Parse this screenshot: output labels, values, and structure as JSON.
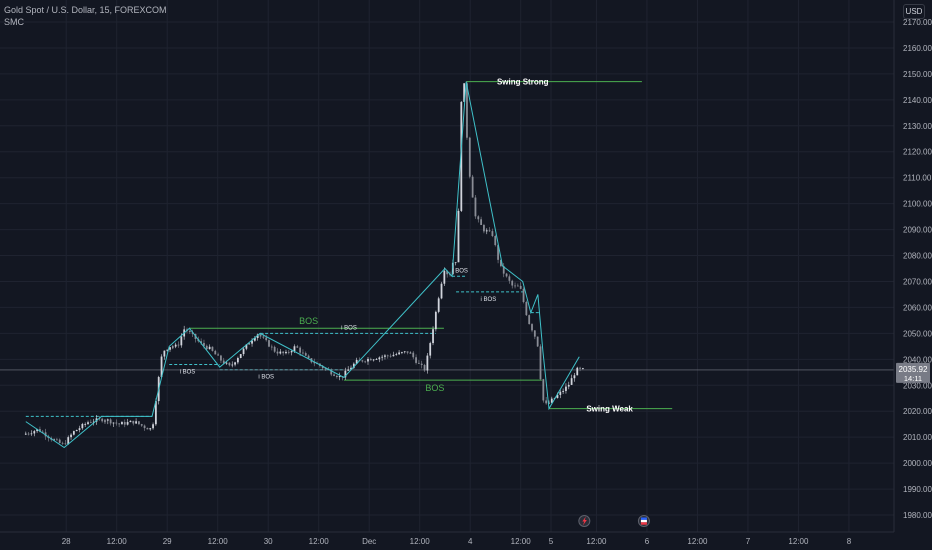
{
  "header": {
    "symbol_line": "Gold Spot / U.S. Dollar, 15, FOREXCOM",
    "indicator": "SMC",
    "currency": "USD"
  },
  "price_badge": {
    "price": "2035.92",
    "countdown": "14:11",
    "color": "#787b86"
  },
  "colors": {
    "background": "#131722",
    "grid": "#1f2330",
    "candle": "#c7c9d1",
    "zigzag": "#3fc1c9",
    "bos": "#4caf50",
    "ibos": "#3fc1c9",
    "text": "#b2b5be"
  },
  "chart_data": {
    "type": "candlestick",
    "ylim": [
      1975,
      2170
    ],
    "y_ticks": [
      1980,
      1990,
      2000,
      2010,
      2020,
      2030,
      2040,
      2050,
      2060,
      2070,
      2080,
      2090,
      2100,
      2110,
      2120,
      2130,
      2140,
      2150,
      2160,
      2170
    ],
    "x_ticks": [
      {
        "label": "28",
        "t": 0.2
      },
      {
        "label": "12:00",
        "t": 0.7
      },
      {
        "label": "29",
        "t": 1.2
      },
      {
        "label": "12:00",
        "t": 1.7
      },
      {
        "label": "30",
        "t": 2.2
      },
      {
        "label": "12:00",
        "t": 2.7
      },
      {
        "label": "Dec",
        "t": 3.2
      },
      {
        "label": "12:00",
        "t": 3.7
      },
      {
        "label": "4",
        "t": 4.2
      },
      {
        "label": "12:00",
        "t": 4.7
      },
      {
        "label": "5",
        "t": 5.0
      },
      {
        "label": "12:00",
        "t": 5.45
      },
      {
        "label": "6",
        "t": 5.95
      },
      {
        "label": "12:00",
        "t": 6.45
      },
      {
        "label": "7",
        "t": 6.95
      },
      {
        "label": "12:00",
        "t": 7.45
      },
      {
        "label": "8",
        "t": 7.95
      }
    ],
    "price_path": [
      [
        -0.2,
        2011
      ],
      [
        -0.05,
        2013
      ],
      [
        0.1,
        2009
      ],
      [
        0.2,
        2007
      ],
      [
        0.3,
        2012
      ],
      [
        0.45,
        2016
      ],
      [
        0.6,
        2017
      ],
      [
        0.75,
        2015
      ],
      [
        0.9,
        2016
      ],
      [
        1.0,
        2014
      ],
      [
        1.08,
        2013
      ],
      [
        1.12,
        2026
      ],
      [
        1.18,
        2043
      ],
      [
        1.25,
        2045
      ],
      [
        1.33,
        2045
      ],
      [
        1.4,
        2052
      ],
      [
        1.48,
        2049
      ],
      [
        1.56,
        2046
      ],
      [
        1.65,
        2044
      ],
      [
        1.75,
        2040
      ],
      [
        1.85,
        2037
      ],
      [
        1.95,
        2042
      ],
      [
        2.05,
        2047
      ],
      [
        2.12,
        2050
      ],
      [
        2.2,
        2047
      ],
      [
        2.3,
        2043
      ],
      [
        2.4,
        2042
      ],
      [
        2.5,
        2045
      ],
      [
        2.62,
        2040
      ],
      [
        2.72,
        2038
      ],
      [
        2.85,
        2035
      ],
      [
        2.95,
        2033
      ],
      [
        3.02,
        2036
      ],
      [
        3.1,
        2039
      ],
      [
        3.2,
        2040
      ],
      [
        3.35,
        2041
      ],
      [
        3.5,
        2042
      ],
      [
        3.62,
        2043
      ],
      [
        3.72,
        2038
      ],
      [
        3.78,
        2036
      ],
      [
        3.85,
        2050
      ],
      [
        3.92,
        2065
      ],
      [
        3.97,
        2075
      ],
      [
        4.02,
        2072
      ],
      [
        4.06,
        2078
      ],
      [
        4.1,
        2078
      ],
      [
        4.14,
        2140
      ],
      [
        4.17,
        2146
      ],
      [
        4.21,
        2115
      ],
      [
        4.28,
        2095
      ],
      [
        4.36,
        2090
      ],
      [
        4.45,
        2088
      ],
      [
        4.52,
        2076
      ],
      [
        4.58,
        2072
      ],
      [
        4.65,
        2068
      ],
      [
        4.72,
        2068
      ],
      [
        4.8,
        2055
      ],
      [
        4.86,
        2050
      ],
      [
        4.9,
        2045
      ],
      [
        4.93,
        2030
      ],
      [
        4.96,
        2022
      ],
      [
        5.0,
        2023
      ],
      [
        5.06,
        2025
      ],
      [
        5.12,
        2027
      ],
      [
        5.2,
        2030
      ],
      [
        5.28,
        2036
      ],
      [
        5.32,
        2035.92
      ]
    ],
    "zigzag": [
      [
        -0.2,
        2016
      ],
      [
        0.18,
        2006
      ],
      [
        0.55,
        2018
      ],
      [
        1.05,
        2018
      ],
      [
        1.22,
        2045
      ],
      [
        1.42,
        2052
      ],
      [
        1.72,
        2037
      ],
      [
        2.12,
        2050
      ],
      [
        2.95,
        2033
      ],
      [
        3.95,
        2075
      ],
      [
        4.02,
        2072
      ],
      [
        4.16,
        2147
      ],
      [
        4.52,
        2076
      ],
      [
        4.72,
        2070
      ],
      [
        4.8,
        2058
      ],
      [
        4.87,
        2065
      ],
      [
        4.92,
        2043
      ],
      [
        4.98,
        2021
      ],
      [
        5.28,
        2041
      ]
    ],
    "structures": [
      {
        "type": "BOS",
        "y": 2052,
        "x0": 1.42,
        "x1": 3.94,
        "style": "solid",
        "label": "BOS",
        "label_t": 2.6,
        "label_pos": "above"
      },
      {
        "type": "BOS",
        "y": 2032,
        "x0": 2.95,
        "x1": 4.91,
        "style": "solid",
        "label": "BOS",
        "label_t": 3.85,
        "label_pos": "below"
      },
      {
        "type": "iBOS",
        "y": 2050,
        "x0": 2.12,
        "x1": 3.86,
        "style": "dashed",
        "label": "i BOS",
        "label_t": 3.0,
        "label_pos": "above"
      },
      {
        "type": "iBOS",
        "y": 2036,
        "x0": 1.72,
        "x1": 2.95,
        "style": "dashed",
        "label": "i BOS",
        "label_t": 2.18,
        "label_pos": "below"
      },
      {
        "type": "iBOS",
        "y": 2038,
        "x0": 1.22,
        "x1": 1.72,
        "style": "dashed",
        "label": "i BOS",
        "label_t": 1.4,
        "label_pos": "below"
      },
      {
        "type": "iBOS",
        "y": 2018,
        "x0": -0.2,
        "x1": 1.05,
        "style": "dashed",
        "label": "",
        "label_t": 0.4,
        "label_pos": "above"
      },
      {
        "type": "iBOS",
        "y": 2072,
        "x0": 4.02,
        "x1": 4.16,
        "style": "dashed",
        "label": "i BOS",
        "label_t": 4.1,
        "label_pos": "above"
      },
      {
        "type": "iBOS",
        "y": 2066,
        "x0": 4.06,
        "x1": 4.72,
        "style": "dashed",
        "label": "i BOS",
        "label_t": 4.38,
        "label_pos": "below"
      },
      {
        "type": "iBOS",
        "y": 2058,
        "x0": 4.8,
        "x1": 4.88,
        "style": "dashed",
        "label": "",
        "label_t": 4.84,
        "label_pos": "above"
      }
    ],
    "swing_levels": [
      {
        "label": "Swing Strong",
        "y": 2147,
        "x0": 4.16,
        "x1": 5.9,
        "label_t": 4.72
      },
      {
        "label": "Swing Weak",
        "y": 2021,
        "x0": 4.98,
        "x1": 6.2,
        "label_t": 5.58
      }
    ],
    "event_icons": [
      {
        "name": "lightning-icon",
        "t": 5.33
      },
      {
        "name": "flag-icon",
        "t": 5.92
      }
    ]
  }
}
